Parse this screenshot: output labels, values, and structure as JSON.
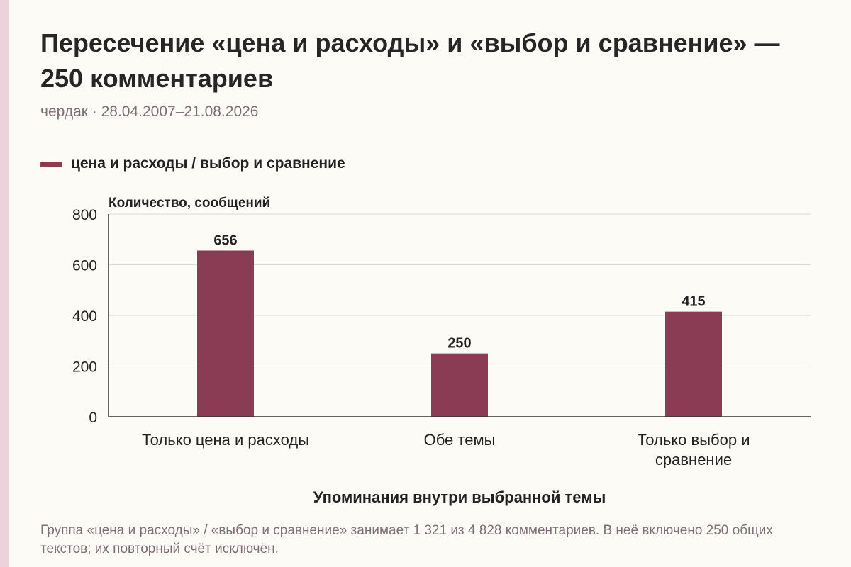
{
  "header": {
    "title": "Пересечение «цена и расходы» и «выбор и сравнение» — 250 комментариев",
    "subtitle": "чердак · 28.04.2007–21.08.2026"
  },
  "legend": {
    "label": "цена и расходы / выбор и сравнение"
  },
  "colors": {
    "bar": "#8b3c55",
    "grid": "#d9d9d9",
    "axis": "#333333",
    "caption": "#7e6e78"
  },
  "chart_data": {
    "type": "bar",
    "categories": [
      [
        "Только цена и расходы"
      ],
      [
        "Обе темы"
      ],
      [
        "Только выбор и",
        "сравнение"
      ]
    ],
    "series": [
      {
        "name": "цена и расходы / выбор и сравнение",
        "values": [
          656,
          250,
          415
        ]
      }
    ],
    "ylabel": "Количество, сообщений",
    "xlabel": "Упоминания внутри выбранной темы",
    "ylim": [
      0,
      800
    ],
    "yticks": [
      0,
      200,
      400,
      600,
      800
    ],
    "grid": true,
    "legend_position": "top-left"
  },
  "footer": {
    "caption": "Группа «цена и расходы» / «выбор и сравнение» занимает 1 321 из 4 828 комментариев. В неё включено 250 общих текстов; их повторный счёт исключён."
  }
}
